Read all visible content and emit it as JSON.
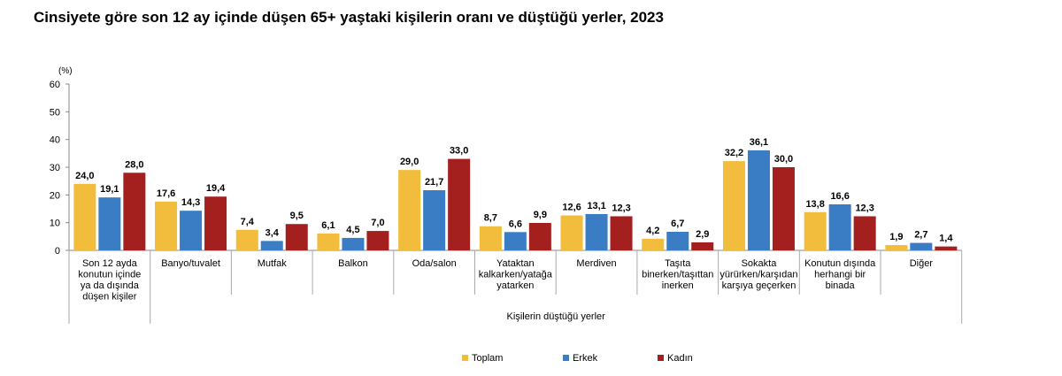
{
  "chart_data": {
    "type": "bar",
    "title": "Cinsiyete göre son 12 ay içinde düşen 65+ yaştaki kişilerin oranı ve düştüğü yerler, 2023",
    "ylabel": "(%)",
    "xlabel": "Kişilerin düştüğü yerler",
    "ylim": [
      0,
      60
    ],
    "yticks": [
      0,
      10,
      20,
      30,
      40,
      50,
      60
    ],
    "grid": false,
    "legend_position": "bottom",
    "categories": [
      [
        "Son 12 ayda",
        "konutun içinde",
        "ya da dışında",
        "düşen kişiler"
      ],
      [
        "Banyo/tuvalet"
      ],
      [
        "Mutfak"
      ],
      [
        "Balkon"
      ],
      [
        "Oda/salon"
      ],
      [
        "Yataktan",
        "kalkarken/yatağa",
        "yatarken"
      ],
      [
        "Merdiven"
      ],
      [
        "Taşıta",
        "binerken/taşıttan",
        "inerken"
      ],
      [
        "Sokakta",
        "yürürken/karşıdan",
        "karşıya geçerken"
      ],
      [
        "Konutun dışında",
        "herhangi bir",
        "binada"
      ],
      [
        "Diğer"
      ]
    ],
    "series": [
      {
        "name": "Toplam",
        "color": "#F2BC3C",
        "values": [
          24.0,
          17.6,
          7.4,
          6.1,
          29.0,
          8.7,
          12.6,
          4.2,
          32.2,
          13.8,
          1.9
        ]
      },
      {
        "name": "Erkek",
        "color": "#3B7DC4",
        "values": [
          19.1,
          14.3,
          3.4,
          4.5,
          21.7,
          6.6,
          13.1,
          6.7,
          36.1,
          16.6,
          2.7
        ]
      },
      {
        "name": "Kadın",
        "color": "#A3201F",
        "values": [
          28.0,
          19.4,
          9.5,
          7.0,
          33.0,
          9.9,
          12.3,
          2.9,
          30.0,
          12.3,
          1.4
        ]
      }
    ]
  }
}
